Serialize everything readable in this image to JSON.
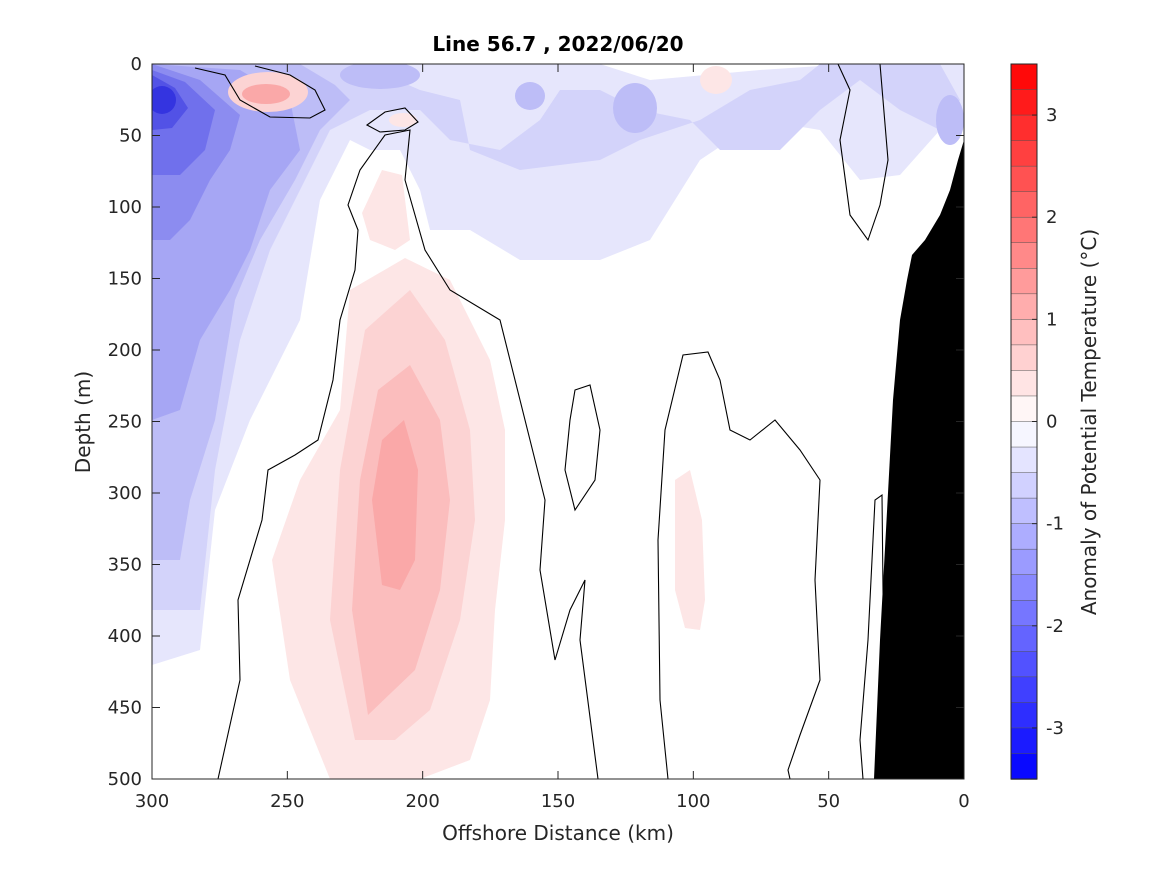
{
  "chart_data": {
    "type": "heatmap",
    "title": "Line 56.7 , 2022/06/20",
    "xlabel": "Offshore Distance (km)",
    "ylabel": "Depth (m)",
    "colorbar_label": "Anomaly of Potential Temperature (°C)",
    "xlim": [
      300,
      0
    ],
    "ylim": [
      0,
      500
    ],
    "y_reversed": true,
    "x_reversed": true,
    "x_ticks": [
      300,
      250,
      200,
      150,
      100,
      50,
      0
    ],
    "x_tick_labels": [
      "300",
      "250",
      "200",
      "150",
      "100",
      "50",
      "0"
    ],
    "y_ticks": [
      0,
      50,
      100,
      150,
      200,
      250,
      300,
      350,
      400,
      450,
      500
    ],
    "y_tick_labels": [
      "0",
      "50",
      "100",
      "150",
      "200",
      "250",
      "300",
      "350",
      "400",
      "450",
      "500"
    ],
    "colorbar_range": [
      -3.5,
      3.5
    ],
    "colorbar_ticks": [
      3,
      2,
      1,
      0,
      -1,
      -2,
      -3
    ],
    "colorbar_tick_labels": [
      "3",
      "2",
      "1",
      "0",
      "-1",
      "-2",
      "-3"
    ],
    "colormap": "blue-white-red",
    "colors": {
      "negative_end": "#0000ff",
      "neutral": "#ffffff",
      "positive_end": "#ff0000",
      "bathymetry": "#000000",
      "contour": "#000000"
    },
    "features": [
      {
        "name": "cold anomaly, nearshore-offshore surface core",
        "x": 295,
        "y": 30,
        "value": -2.2
      },
      {
        "name": "warm subsurface core",
        "x": 205,
        "y": 330,
        "value": 0.8
      },
      {
        "name": "warm near-surface patch",
        "x": 255,
        "y": 22,
        "value": 0.7
      },
      {
        "name": "weak warm patch",
        "x": 100,
        "y": 330,
        "value": 0.3
      },
      {
        "name": "cold patch",
        "x": 120,
        "y": 30,
        "value": -0.8
      }
    ],
    "zero_contour_shown": true,
    "bathymetry_shown": true
  }
}
